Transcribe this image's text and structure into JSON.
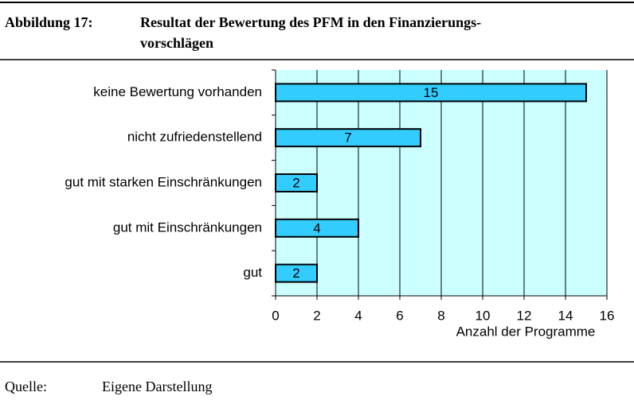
{
  "figure": {
    "number": "Abbildung 17:",
    "title_lines": [
      "Resultat der Bewertung des PFM in den Finanzierungs-",
      "vorschlägen"
    ]
  },
  "chart_data": {
    "type": "bar",
    "orientation": "horizontal",
    "categories": [
      "keine Bewertung vorhanden",
      "nicht zufriedenstellend",
      "gut mit starken Einschränkungen",
      "gut mit Einschränkungen",
      "gut"
    ],
    "values": [
      15,
      7,
      2,
      4,
      2
    ],
    "color": "#33ccff",
    "plot_background": "#ccffff",
    "xlabel": "Anzahl der Programme",
    "xlim": [
      0,
      16
    ],
    "xticks": [
      0,
      2,
      4,
      6,
      8,
      10,
      12,
      14,
      16
    ],
    "grid": true
  },
  "source": {
    "label": "Quelle:",
    "text": "Eigene Darstellung"
  }
}
